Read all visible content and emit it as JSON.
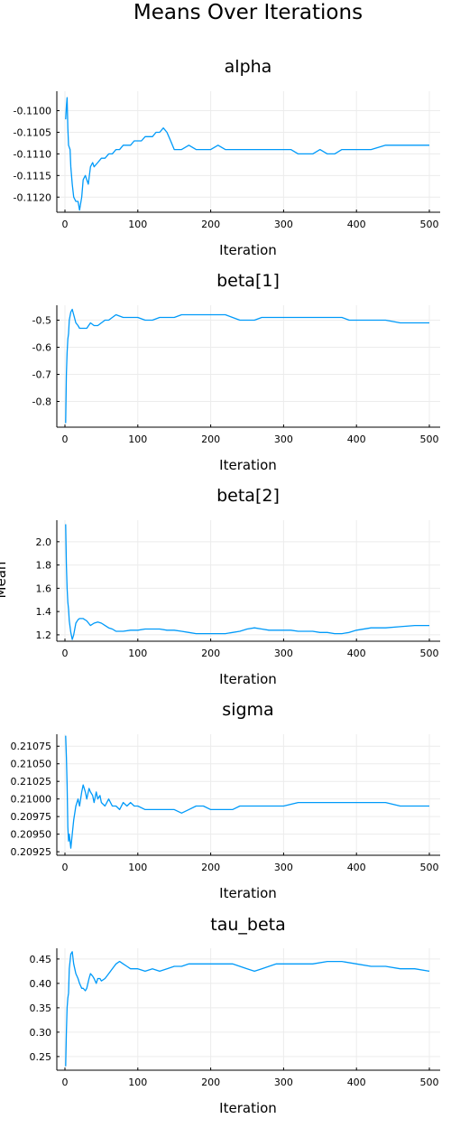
{
  "figure": {
    "title": "Means Over Iterations",
    "ylabel": "Mean"
  },
  "colors": {
    "series": "#009af9",
    "grid": "#ececec",
    "axis": "#000000"
  },
  "chart_data": [
    {
      "type": "line",
      "title": "alpha",
      "xlabel": "Iteration",
      "xlim": [
        0,
        500
      ],
      "xticks": [
        0,
        100,
        200,
        300,
        400,
        500
      ],
      "ylim": [
        -0.11235,
        -0.10955
      ],
      "yticks": [
        -0.11,
        -0.1105,
        -0.111,
        -0.1115,
        -0.112
      ],
      "ytick_labels": [
        "-0.1100",
        "-0.1105",
        "-0.1110",
        "-0.1115",
        "-0.1120"
      ],
      "grid": true,
      "series": [
        {
          "x": [
            1,
            2,
            3,
            4,
            5,
            7,
            8,
            10,
            12,
            15,
            18,
            20,
            23,
            25,
            28,
            30,
            32,
            35,
            38,
            40,
            45,
            50,
            55,
            60,
            65,
            70,
            75,
            80,
            85,
            90,
            95,
            100,
            105,
            110,
            115,
            120,
            125,
            130,
            135,
            140,
            145,
            150,
            160,
            170,
            180,
            190,
            200,
            210,
            220,
            230,
            240,
            250,
            260,
            270,
            280,
            290,
            300,
            310,
            320,
            330,
            340,
            350,
            360,
            370,
            380,
            390,
            400,
            420,
            440,
            460,
            480,
            500
          ],
          "y": [
            -0.1102,
            -0.1099,
            -0.1097,
            -0.1104,
            -0.1108,
            -0.1109,
            -0.1113,
            -0.1117,
            -0.112,
            -0.1121,
            -0.1121,
            -0.1123,
            -0.112,
            -0.1116,
            -0.1115,
            -0.1116,
            -0.1117,
            -0.1113,
            -0.1112,
            -0.1113,
            -0.1112,
            -0.1111,
            -0.1111,
            -0.111,
            -0.111,
            -0.1109,
            -0.1109,
            -0.1108,
            -0.1108,
            -0.1108,
            -0.1107,
            -0.1107,
            -0.1107,
            -0.1106,
            -0.1106,
            -0.1106,
            -0.1105,
            -0.1105,
            -0.1104,
            -0.1105,
            -0.1107,
            -0.1109,
            -0.1109,
            -0.1108,
            -0.1109,
            -0.1109,
            -0.1109,
            -0.1108,
            -0.1109,
            -0.1109,
            -0.1109,
            -0.1109,
            -0.1109,
            -0.1109,
            -0.1109,
            -0.1109,
            -0.1109,
            -0.1109,
            -0.111,
            -0.111,
            -0.111,
            -0.1109,
            -0.111,
            -0.111,
            -0.1109,
            -0.1109,
            -0.1109,
            -0.1109,
            -0.1108,
            -0.1108,
            -0.1108,
            -0.1108
          ]
        }
      ]
    },
    {
      "type": "line",
      "title": "beta[1]",
      "xlabel": "Iteration",
      "xlim": [
        0,
        500
      ],
      "xticks": [
        0,
        100,
        200,
        300,
        400,
        500
      ],
      "ylim": [
        -0.895,
        -0.445
      ],
      "yticks": [
        -0.5,
        -0.6,
        -0.7,
        -0.8
      ],
      "ytick_labels": [
        "-0.5",
        "-0.6",
        "-0.7",
        "-0.8"
      ],
      "grid": true,
      "series": [
        {
          "x": [
            1,
            2,
            3,
            4,
            5,
            6,
            8,
            10,
            12,
            15,
            18,
            20,
            25,
            30,
            35,
            40,
            45,
            50,
            55,
            60,
            65,
            70,
            80,
            90,
            100,
            110,
            120,
            130,
            140,
            150,
            160,
            170,
            180,
            190,
            200,
            210,
            220,
            230,
            240,
            250,
            260,
            270,
            280,
            290,
            300,
            310,
            320,
            330,
            340,
            350,
            360,
            370,
            380,
            390,
            400,
            420,
            440,
            460,
            480,
            500
          ],
          "y": [
            -0.88,
            -0.7,
            -0.62,
            -0.57,
            -0.55,
            -0.5,
            -0.47,
            -0.46,
            -0.48,
            -0.51,
            -0.52,
            -0.53,
            -0.53,
            -0.53,
            -0.51,
            -0.52,
            -0.52,
            -0.51,
            -0.5,
            -0.5,
            -0.49,
            -0.48,
            -0.49,
            -0.49,
            -0.49,
            -0.5,
            -0.5,
            -0.49,
            -0.49,
            -0.49,
            -0.48,
            -0.48,
            -0.48,
            -0.48,
            -0.48,
            -0.48,
            -0.48,
            -0.49,
            -0.5,
            -0.5,
            -0.5,
            -0.49,
            -0.49,
            -0.49,
            -0.49,
            -0.49,
            -0.49,
            -0.49,
            -0.49,
            -0.49,
            -0.49,
            -0.49,
            -0.49,
            -0.5,
            -0.5,
            -0.5,
            -0.5,
            -0.51,
            -0.51,
            -0.51
          ]
        }
      ]
    },
    {
      "type": "line",
      "title": "beta[2]",
      "xlabel": "Iteration",
      "xlim": [
        0,
        500
      ],
      "xticks": [
        0,
        100,
        200,
        300,
        400,
        500
      ],
      "ylim": [
        1.145,
        2.185
      ],
      "yticks": [
        2.0,
        1.8,
        1.6,
        1.4,
        1.2
      ],
      "ytick_labels": [
        "2.0",
        "1.8",
        "1.6",
        "1.4",
        "1.2"
      ],
      "grid": true,
      "series": [
        {
          "x": [
            1,
            2,
            3,
            4,
            5,
            6,
            8,
            10,
            12,
            15,
            18,
            20,
            25,
            30,
            35,
            40,
            45,
            50,
            55,
            60,
            65,
            70,
            80,
            90,
            100,
            110,
            120,
            130,
            140,
            150,
            160,
            170,
            180,
            190,
            200,
            210,
            220,
            230,
            240,
            250,
            260,
            270,
            280,
            290,
            300,
            310,
            320,
            330,
            340,
            350,
            360,
            370,
            380,
            390,
            400,
            420,
            440,
            460,
            480,
            500
          ],
          "y": [
            2.15,
            1.8,
            1.6,
            1.48,
            1.42,
            1.32,
            1.22,
            1.16,
            1.2,
            1.3,
            1.33,
            1.34,
            1.34,
            1.32,
            1.28,
            1.3,
            1.31,
            1.3,
            1.28,
            1.26,
            1.25,
            1.23,
            1.23,
            1.24,
            1.24,
            1.25,
            1.25,
            1.25,
            1.24,
            1.24,
            1.23,
            1.22,
            1.21,
            1.21,
            1.21,
            1.21,
            1.21,
            1.22,
            1.23,
            1.25,
            1.26,
            1.25,
            1.24,
            1.24,
            1.24,
            1.24,
            1.23,
            1.23,
            1.23,
            1.22,
            1.22,
            1.21,
            1.21,
            1.22,
            1.24,
            1.26,
            1.26,
            1.27,
            1.28,
            1.28
          ]
        }
      ]
    },
    {
      "type": "line",
      "title": "sigma",
      "xlabel": "Iteration",
      "xlim": [
        0,
        500
      ],
      "xticks": [
        0,
        100,
        200,
        300,
        400,
        500
      ],
      "ylim": [
        0.2092,
        0.21092
      ],
      "yticks": [
        0.21075,
        0.2105,
        0.21025,
        0.21,
        0.20975,
        0.2095,
        0.20925
      ],
      "ytick_labels": [
        "0.21075",
        "0.21050",
        "0.21025",
        "0.21000",
        "0.20975",
        "0.20950",
        "0.20925"
      ],
      "grid": true,
      "series": [
        {
          "x": [
            1,
            2,
            3,
            4,
            5,
            6,
            8,
            10,
            12,
            15,
            18,
            20,
            23,
            25,
            28,
            30,
            33,
            35,
            38,
            40,
            43,
            45,
            48,
            50,
            55,
            60,
            65,
            70,
            75,
            80,
            85,
            90,
            95,
            100,
            110,
            120,
            130,
            140,
            150,
            160,
            170,
            180,
            190,
            200,
            210,
            220,
            230,
            240,
            250,
            260,
            270,
            280,
            290,
            300,
            320,
            340,
            360,
            380,
            400,
            420,
            440,
            460,
            480,
            500
          ],
          "y": [
            0.2109,
            0.2106,
            0.2102,
            0.2096,
            0.2094,
            0.2095,
            0.2093,
            0.2095,
            0.2097,
            0.2099,
            0.21,
            0.2099,
            0.2101,
            0.2102,
            0.2101,
            0.21,
            0.21015,
            0.2101,
            0.21005,
            0.20995,
            0.2101,
            0.21,
            0.21005,
            0.20995,
            0.2099,
            0.21,
            0.2099,
            0.2099,
            0.20985,
            0.20995,
            0.2099,
            0.20995,
            0.2099,
            0.2099,
            0.20985,
            0.20985,
            0.20985,
            0.20985,
            0.20985,
            0.2098,
            0.20985,
            0.2099,
            0.2099,
            0.20985,
            0.20985,
            0.20985,
            0.20985,
            0.2099,
            0.2099,
            0.2099,
            0.2099,
            0.2099,
            0.2099,
            0.2099,
            0.20995,
            0.20995,
            0.20995,
            0.20995,
            0.20995,
            0.20995,
            0.20995,
            0.2099,
            0.2099,
            0.2099
          ]
        }
      ]
    },
    {
      "type": "line",
      "title": "tau_beta",
      "xlabel": "Iteration",
      "xlim": [
        0,
        500
      ],
      "xticks": [
        0,
        100,
        200,
        300,
        400,
        500
      ],
      "ylim": [
        0.222,
        0.472
      ],
      "yticks": [
        0.45,
        0.4,
        0.35,
        0.3,
        0.25
      ],
      "ytick_labels": [
        "0.45",
        "0.40",
        "0.35",
        "0.30",
        "0.25"
      ],
      "grid": true,
      "series": [
        {
          "x": [
            1,
            2,
            3,
            4,
            5,
            6,
            8,
            10,
            12,
            15,
            18,
            20,
            23,
            25,
            28,
            30,
            33,
            35,
            38,
            40,
            43,
            45,
            48,
            50,
            55,
            60,
            65,
            70,
            75,
            80,
            85,
            90,
            95,
            100,
            110,
            120,
            130,
            140,
            150,
            160,
            170,
            180,
            190,
            200,
            210,
            220,
            230,
            240,
            250,
            260,
            270,
            280,
            290,
            300,
            320,
            340,
            360,
            380,
            400,
            420,
            440,
            460,
            480,
            500
          ],
          "y": [
            0.23,
            0.3,
            0.35,
            0.37,
            0.38,
            0.43,
            0.46,
            0.465,
            0.44,
            0.42,
            0.41,
            0.4,
            0.39,
            0.39,
            0.385,
            0.39,
            0.41,
            0.42,
            0.415,
            0.41,
            0.4,
            0.41,
            0.41,
            0.405,
            0.41,
            0.42,
            0.43,
            0.44,
            0.445,
            0.44,
            0.435,
            0.43,
            0.43,
            0.43,
            0.425,
            0.43,
            0.425,
            0.43,
            0.435,
            0.435,
            0.44,
            0.44,
            0.44,
            0.44,
            0.44,
            0.44,
            0.44,
            0.435,
            0.43,
            0.425,
            0.43,
            0.435,
            0.44,
            0.44,
            0.44,
            0.44,
            0.445,
            0.445,
            0.44,
            0.435,
            0.435,
            0.43,
            0.43,
            0.425
          ]
        }
      ]
    }
  ]
}
